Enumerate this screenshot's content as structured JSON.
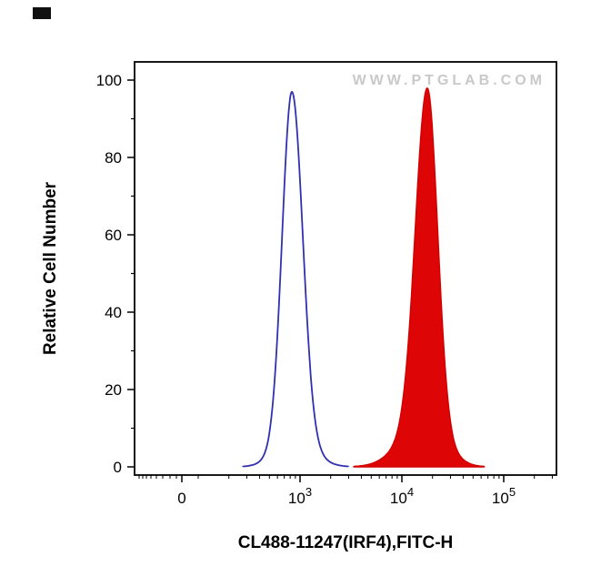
{
  "chart_data": {
    "type": "line",
    "subtype": "flow_cytometry_histogram_overlay",
    "title": "",
    "xlabel": "CL488-11247(IRF4),FITC-H",
    "ylabel": "Relative Cell Number",
    "watermark": "WWW.PTGLAB.COM",
    "x_scale": "biexponential log (0, 10^3, 10^4, 10^5)",
    "ylim": [
      0,
      100
    ],
    "grid": false,
    "legend": "none",
    "y_ticks": [
      0,
      20,
      40,
      60,
      80,
      100
    ],
    "x_ticks": [
      {
        "label": "0"
      },
      {
        "label": "10^3",
        "base": "10",
        "exp": "3"
      },
      {
        "label": "10^4",
        "base": "10",
        "exp": "4"
      },
      {
        "label": "10^5",
        "base": "10",
        "exp": "5"
      }
    ],
    "colors": {
      "axis": "#000000",
      "background": "#ffffff",
      "watermark": "#c9c9c9",
      "blue_curve": "#3030b0",
      "red_curve": "#dd0505"
    },
    "series": [
      {
        "name": "blue-open-histogram",
        "description": "Open (unfilled) blue histogram peaking near 1e3, max ~97% of scale",
        "stroke": "#3030b0",
        "fill": "none",
        "stroke_width": 1.8,
        "peak_x": "1e3",
        "peak_y": 97,
        "components": [
          {
            "mu": 2.92,
            "a": 90,
            "sl": 0.095,
            "sr": 0.105
          },
          {
            "mu": 2.93,
            "a": 7,
            "sl": 0.17,
            "sr": 0.19
          }
        ]
      },
      {
        "name": "red-filled-histogram",
        "description": "Solid red filled histogram peaking near 2e4, max ~98% of scale",
        "stroke": "#d40000",
        "fill": "#dd0505",
        "stroke_width": 1.5,
        "peak_x": "2e4",
        "peak_y": 98,
        "components": [
          {
            "mu": 4.25,
            "a": 86,
            "sl": 0.115,
            "sr": 0.1
          },
          {
            "mu": 4.23,
            "a": 12,
            "sl": 0.23,
            "sr": 0.19
          }
        ]
      }
    ]
  }
}
